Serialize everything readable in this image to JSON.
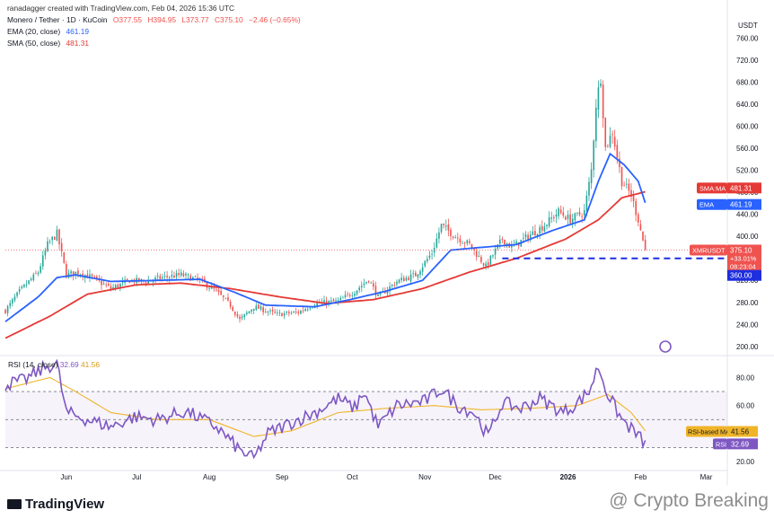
{
  "header": {
    "credit": "ranadagger created with TradingView.com, Feb 04, 2026 15:36 UTC",
    "pair": "Monero / Tether · 1D · KuCoin",
    "ohlc": [
      "O377.55",
      "H394.95",
      "L373.77",
      "C375.10",
      "−2.46 (−0.65%)"
    ],
    "ema_label": "EMA (20, close)",
    "ema_value": "461.19",
    "sma_label": "SMA (50, close)",
    "sma_value": "481.31"
  },
  "rsi_header": {
    "label": "RSI (14, close)",
    "rsi": "32.69",
    "ma": "41.56"
  },
  "footer": {
    "logo": "TradingView",
    "watermark": "@ Crypto Breaking"
  },
  "colors": {
    "up": "#26a69a",
    "down": "#ef5350",
    "ema": "#2962ff",
    "sma": "#e53935",
    "support": "#1e2fe0",
    "rsi": "#7e57c2",
    "rsi_ma": "#f0b429"
  },
  "chart_data": [
    {
      "type": "candlestick",
      "title": "Monero / Tether · 1D · KuCoin",
      "y_axis_label": "USDT",
      "y_ticks": [
        "200.00",
        "240.00",
        "280.00",
        "320.00",
        "360.00",
        "400.00",
        "440.00",
        "480.00",
        "520.00",
        "560.00",
        "600.00",
        "640.00",
        "680.00",
        "720.00",
        "760.00"
      ],
      "ylim": [
        185,
        800
      ],
      "x_ticks": [
        "Jun",
        "Jul",
        "Aug",
        "Sep",
        "Oct",
        "Nov",
        "Dec",
        "2026",
        "Feb",
        "Mar"
      ],
      "x_range": [
        "2025-05-06",
        "2026-03-10"
      ],
      "last_close": 375.1,
      "markers": [
        {
          "label": "SMA:MA",
          "value": "481.31"
        },
        {
          "label": "EMA",
          "value": "461.19"
        },
        {
          "label": "XMRUSDT",
          "value": "375.10",
          "extra": [
            "+33.01%",
            "08:23:04"
          ]
        },
        {
          "label": "",
          "value": "360.00"
        }
      ],
      "support_level": 360,
      "close_anchors": [
        [
          "2025-05-06",
          265
        ],
        [
          "2025-05-12",
          300
        ],
        [
          "2025-05-20",
          335
        ],
        [
          "2025-05-24",
          385
        ],
        [
          "2025-05-28",
          405
        ],
        [
          "2025-06-01",
          330
        ],
        [
          "2025-06-06",
          335
        ],
        [
          "2025-06-12",
          325
        ],
        [
          "2025-06-20",
          305
        ],
        [
          "2025-06-28",
          320
        ],
        [
          "2025-07-05",
          318
        ],
        [
          "2025-07-12",
          325
        ],
        [
          "2025-07-20",
          330
        ],
        [
          "2025-07-28",
          320
        ],
        [
          "2025-08-04",
          300
        ],
        [
          "2025-08-10",
          275
        ],
        [
          "2025-08-14",
          248
        ],
        [
          "2025-08-20",
          272
        ],
        [
          "2025-08-30",
          258
        ],
        [
          "2025-09-08",
          262
        ],
        [
          "2025-09-15",
          278
        ],
        [
          "2025-09-25",
          282
        ],
        [
          "2025-10-02",
          300
        ],
        [
          "2025-10-08",
          322
        ],
        [
          "2025-10-12",
          290
        ],
        [
          "2025-10-20",
          318
        ],
        [
          "2025-10-28",
          330
        ],
        [
          "2025-11-04",
          370
        ],
        [
          "2025-11-08",
          420
        ],
        [
          "2025-11-14",
          400
        ],
        [
          "2025-11-20",
          385
        ],
        [
          "2025-11-27",
          345
        ],
        [
          "2025-12-04",
          395
        ],
        [
          "2025-12-08",
          380
        ],
        [
          "2025-12-15",
          400
        ],
        [
          "2025-12-22",
          420
        ],
        [
          "2025-12-28",
          445
        ],
        [
          "2026-01-02",
          430
        ],
        [
          "2026-01-08",
          445
        ],
        [
          "2026-01-11",
          520
        ],
        [
          "2026-01-13",
          640
        ],
        [
          "2026-01-15",
          690
        ],
        [
          "2026-01-17",
          560
        ],
        [
          "2026-01-20",
          590
        ],
        [
          "2026-01-24",
          500
        ],
        [
          "2026-01-28",
          475
        ],
        [
          "2026-01-31",
          430
        ],
        [
          "2026-02-03",
          375
        ]
      ],
      "ema_anchors": [
        [
          "2025-05-06",
          245
        ],
        [
          "2025-05-20",
          290
        ],
        [
          "2025-05-28",
          325
        ],
        [
          "2025-06-05",
          330
        ],
        [
          "2025-06-20",
          318
        ],
        [
          "2025-07-10",
          320
        ],
        [
          "2025-07-28",
          322
        ],
        [
          "2025-08-12",
          298
        ],
        [
          "2025-08-25",
          275
        ],
        [
          "2025-09-15",
          272
        ],
        [
          "2025-09-30",
          285
        ],
        [
          "2025-10-15",
          300
        ],
        [
          "2025-10-31",
          320
        ],
        [
          "2025-11-12",
          375
        ],
        [
          "2025-11-25",
          380
        ],
        [
          "2025-12-10",
          385
        ],
        [
          "2025-12-25",
          410
        ],
        [
          "2026-01-08",
          430
        ],
        [
          "2026-01-14",
          500
        ],
        [
          "2026-01-19",
          550
        ],
        [
          "2026-01-25",
          530
        ],
        [
          "2026-01-31",
          500
        ],
        [
          "2026-02-03",
          461
        ]
      ],
      "sma_anchors": [
        [
          "2025-05-06",
          215
        ],
        [
          "2025-05-25",
          255
        ],
        [
          "2025-06-10",
          295
        ],
        [
          "2025-07-01",
          312
        ],
        [
          "2025-07-20",
          315
        ],
        [
          "2025-08-10",
          305
        ],
        [
          "2025-08-31",
          290
        ],
        [
          "2025-09-20",
          278
        ],
        [
          "2025-10-10",
          285
        ],
        [
          "2025-10-31",
          305
        ],
        [
          "2025-11-20",
          335
        ],
        [
          "2025-12-10",
          360
        ],
        [
          "2025-12-31",
          395
        ],
        [
          "2026-01-14",
          430
        ],
        [
          "2026-01-24",
          470
        ],
        [
          "2026-02-03",
          481
        ]
      ]
    },
    {
      "type": "line",
      "title": "RSI (14, close)",
      "y_ticks": [
        "20.00",
        "40.00",
        "60.00",
        "80.00"
      ],
      "ylim": [
        15,
        95
      ],
      "bands": [
        30,
        50,
        70
      ],
      "markers": [
        {
          "label": "RSI-based MA",
          "value": "41.56"
        },
        {
          "label": "RSI",
          "value": "32.69"
        }
      ],
      "series": [
        {
          "name": "RSI",
          "points": [
            [
              "2025-05-06",
              75
            ],
            [
              "2025-05-14",
              78
            ],
            [
              "2025-05-24",
              88
            ],
            [
              "2025-05-28",
              90
            ],
            [
              "2025-06-01",
              55
            ],
            [
              "2025-06-10",
              50
            ],
            [
              "2025-06-20",
              45
            ],
            [
              "2025-06-30",
              52
            ],
            [
              "2025-07-10",
              50
            ],
            [
              "2025-07-22",
              56
            ],
            [
              "2025-08-04",
              45
            ],
            [
              "2025-08-14",
              28
            ],
            [
              "2025-08-20",
              22
            ],
            [
              "2025-08-26",
              40
            ],
            [
              "2025-09-05",
              48
            ],
            [
              "2025-09-15",
              55
            ],
            [
              "2025-09-25",
              65
            ],
            [
              "2025-10-02",
              58
            ],
            [
              "2025-10-06",
              70
            ],
            [
              "2025-10-12",
              45
            ],
            [
              "2025-10-20",
              60
            ],
            [
              "2025-11-01",
              63
            ],
            [
              "2025-11-08",
              72
            ],
            [
              "2025-11-15",
              60
            ],
            [
              "2025-11-22",
              55
            ],
            [
              "2025-11-28",
              38
            ],
            [
              "2025-12-04",
              62
            ],
            [
              "2025-12-12",
              58
            ],
            [
              "2025-12-20",
              65
            ],
            [
              "2025-12-30",
              55
            ],
            [
              "2026-01-05",
              62
            ],
            [
              "2026-01-10",
              70
            ],
            [
              "2026-01-14",
              88
            ],
            [
              "2026-01-18",
              68
            ],
            [
              "2026-01-24",
              50
            ],
            [
              "2026-01-30",
              40
            ],
            [
              "2026-02-03",
              33
            ]
          ]
        },
        {
          "name": "RSI-based MA",
          "points": [
            [
              "2025-05-06",
              72
            ],
            [
              "2025-05-25",
              80
            ],
            [
              "2025-06-05",
              70
            ],
            [
              "2025-06-20",
              55
            ],
            [
              "2025-07-10",
              50
            ],
            [
              "2025-08-01",
              50
            ],
            [
              "2025-08-20",
              38
            ],
            [
              "2025-09-05",
              42
            ],
            [
              "2025-09-25",
              55
            ],
            [
              "2025-10-15",
              58
            ],
            [
              "2025-11-05",
              60
            ],
            [
              "2025-11-25",
              57
            ],
            [
              "2025-12-15",
              58
            ],
            [
              "2026-01-05",
              60
            ],
            [
              "2026-01-18",
              68
            ],
            [
              "2026-01-28",
              55
            ],
            [
              "2026-02-03",
              42
            ]
          ]
        }
      ]
    }
  ]
}
